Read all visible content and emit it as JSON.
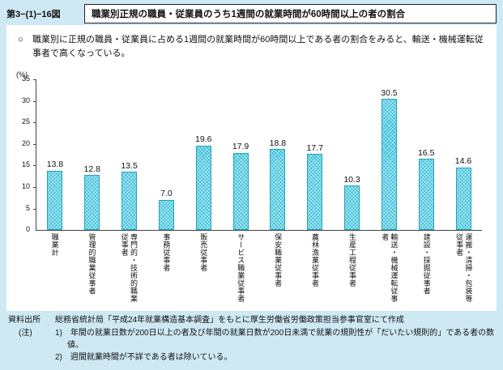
{
  "header": {
    "figure_label": "第3−(1)−16図",
    "title": "職業別正規の職員・従業員のうち1週間の就業時間が60時間以上の者の割合"
  },
  "lead": {
    "bullet": "○",
    "text": "職業別に正規の職員・従業員に占める1週間の就業時間が60時間以上である者の割合をみると、輸送・機械運転従事者で高くなっている。"
  },
  "chart_data": {
    "type": "bar",
    "title": "",
    "unit_label": "(%)",
    "xlabel": "",
    "ylabel": "(%)",
    "categories": [
      "職業計",
      "管理的職業従事者",
      "専門的・技術的職業従事者",
      "事務従事者",
      "販売従事者",
      "サービス職業従事者",
      "保安職業従事者",
      "農林漁業従事者",
      "生産工程従事者",
      "輸送・機械運転従事者",
      "建設・採掘従事者",
      "運搬・清掃・包装等従事者"
    ],
    "values": [
      13.8,
      12.8,
      13.5,
      7.0,
      19.6,
      17.9,
      18.8,
      17.7,
      10.3,
      30.5,
      16.5,
      14.6
    ],
    "ylim": [
      0,
      35
    ],
    "yticks": [
      0,
      5,
      10,
      15,
      20,
      25,
      30,
      35
    ],
    "grid": false,
    "legend": "none",
    "bar_color": "#2fbdd9"
  },
  "footer": {
    "source_label": "資料出所",
    "source_text": "総務省統計局「平成24年就業構造基本調査」をもとに厚生労働省労働政策担当参事官室にて作成",
    "note_label": "(注)",
    "notes": [
      "1)　年間の就業日数が200日以上の者及び年間の就業日数が200日未満で就業の規則性が「だいたい規則的」である者の数値。",
      "2)　週間就業時間が不詳である者は除いている。"
    ]
  }
}
